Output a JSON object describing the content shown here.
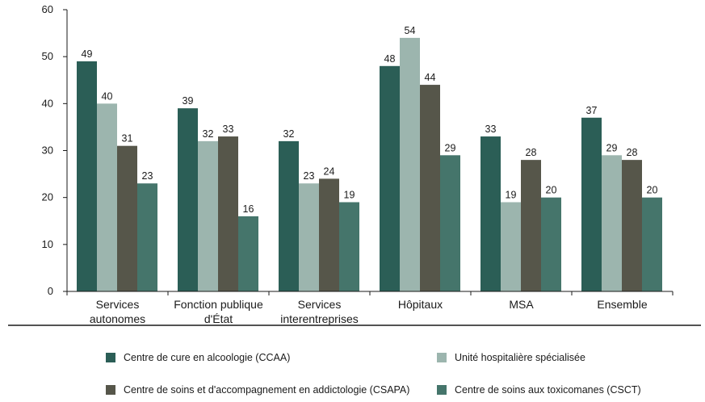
{
  "chart_data": {
    "type": "bar",
    "categories": [
      [
        "Services",
        "autonomes"
      ],
      [
        "Fonction publique",
        "d'État"
      ],
      [
        "Services",
        "interentreprises"
      ],
      [
        "Hôpitaux"
      ],
      [
        "MSA"
      ],
      [
        "Ensemble"
      ]
    ],
    "series": [
      {
        "name": "Centre de cure en alcoologie (CCAA)",
        "color": "#2b5e56",
        "values": [
          49,
          39,
          32,
          48,
          33,
          37
        ]
      },
      {
        "name": "Unité hospitalière spécialisée",
        "color": "#9cb5ae",
        "values": [
          40,
          32,
          23,
          54,
          19,
          29
        ]
      },
      {
        "name": "Centre de soins et d'accompagnement en addictologie (CSAPA)",
        "color": "#56564a",
        "values": [
          31,
          33,
          24,
          44,
          28,
          28
        ]
      },
      {
        "name": "Centre de soins aux toxicomanes (CSCT)",
        "color": "#45756b",
        "values": [
          23,
          16,
          19,
          29,
          20,
          20
        ]
      }
    ],
    "ylim": [
      0,
      60
    ],
    "yticks": [
      0,
      10,
      20,
      30,
      40,
      50,
      60
    ],
    "legend_position": "bottom",
    "grid": false
  }
}
